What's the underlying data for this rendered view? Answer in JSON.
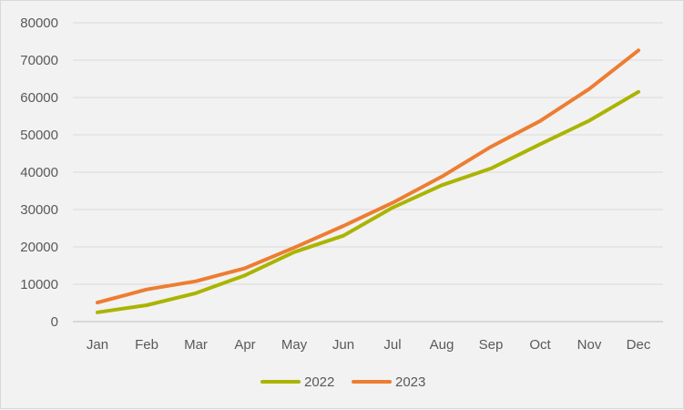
{
  "chart_data": {
    "type": "line",
    "title": "",
    "xlabel": "",
    "ylabel": "",
    "categories": [
      "Jan",
      "Feb",
      "Mar",
      "Apr",
      "May",
      "Jun",
      "Jul",
      "Aug",
      "Sep",
      "Oct",
      "Nov",
      "Dec"
    ],
    "ylim": [
      0,
      80000
    ],
    "yticks": [
      "0",
      "10000",
      "20000",
      "30000",
      "40000",
      "50000",
      "60000",
      "70000",
      "80000"
    ],
    "grid": "horizontal",
    "legend_position": "bottom",
    "series": [
      {
        "name": "2022",
        "color": "#aab400",
        "values": [
          2500,
          4400,
          7600,
          12400,
          18600,
          23000,
          30500,
          36500,
          41000,
          47500,
          53800,
          61500
        ]
      },
      {
        "name": "2023",
        "color": "#ed7d31",
        "values": [
          5100,
          8600,
          10800,
          14300,
          19800,
          25600,
          31800,
          38800,
          46800,
          53700,
          62300,
          72600
        ]
      }
    ]
  }
}
